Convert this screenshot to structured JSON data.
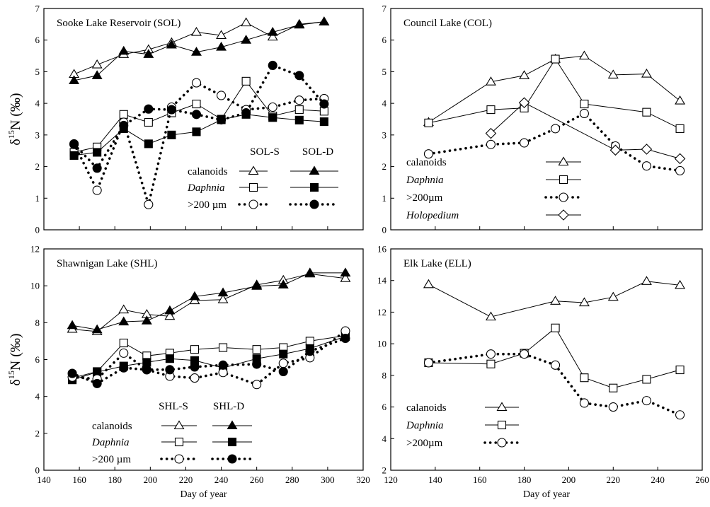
{
  "chart_data": [
    {
      "type": "line",
      "title": "Sooke Lake Reservoir (SOL)",
      "ylabel": "δ15N (‰)",
      "xlabel": "",
      "xlim": [
        140,
        320
      ],
      "ylim": [
        0,
        7
      ],
      "xticks": [],
      "yticks": [
        "0",
        "1",
        "2",
        "3",
        "4",
        "5",
        "6",
        "7"
      ],
      "legend_headers": [
        "SOL-S",
        "SOL-D"
      ],
      "legend_rows": [
        "calanoids",
        "Daphnia",
        ">200 µm"
      ],
      "series": [
        {
          "name": "SOL-S calanoids",
          "marker": "triangle-open",
          "line": "solid",
          "points": [
            [
              157,
              4.92
            ],
            [
              170,
              5.22
            ],
            [
              185,
              5.55
            ],
            [
              199,
              5.7
            ],
            [
              212,
              5.92
            ],
            [
              226,
              6.25
            ],
            [
              240,
              6.15
            ],
            [
              254,
              6.55
            ],
            [
              269,
              6.1
            ],
            [
              284,
              6.5
            ],
            [
              298,
              6.58
            ]
          ]
        },
        {
          "name": "SOL-D calanoids",
          "marker": "triangle-filled",
          "line": "solid",
          "points": [
            [
              157,
              4.72
            ],
            [
              170,
              4.88
            ],
            [
              185,
              5.65
            ],
            [
              199,
              5.55
            ],
            [
              212,
              5.85
            ],
            [
              226,
              5.62
            ],
            [
              240,
              5.78
            ],
            [
              254,
              6.0
            ],
            [
              269,
              6.25
            ],
            [
              284,
              6.48
            ],
            [
              298,
              6.58
            ]
          ]
        },
        {
          "name": "SOL-S Daphnia",
          "marker": "square-open",
          "line": "solid",
          "points": [
            [
              157,
              2.45
            ],
            [
              170,
              2.62
            ],
            [
              185,
              3.65
            ],
            [
              199,
              3.4
            ],
            [
              212,
              3.7
            ],
            [
              226,
              3.98
            ],
            [
              240,
              3.5
            ],
            [
              254,
              4.7
            ],
            [
              269,
              3.6
            ],
            [
              284,
              3.8
            ],
            [
              298,
              3.75
            ]
          ]
        },
        {
          "name": "SOL-D Daphnia",
          "marker": "square-filled",
          "line": "solid",
          "points": [
            [
              157,
              2.35
            ],
            [
              170,
              2.45
            ],
            [
              185,
              3.2
            ],
            [
              199,
              2.72
            ],
            [
              212,
              3.0
            ],
            [
              226,
              3.1
            ],
            [
              240,
              3.48
            ],
            [
              254,
              3.65
            ],
            [
              269,
              3.55
            ],
            [
              284,
              3.47
            ],
            [
              298,
              3.42
            ]
          ]
        },
        {
          "name": "SOL-S >200 µm",
          "marker": "circle-open",
          "line": "dotted",
          "points": [
            [
              157,
              2.72
            ],
            [
              170,
              1.25
            ],
            [
              185,
              3.4
            ],
            [
              199,
              0.8
            ],
            [
              212,
              3.88
            ],
            [
              226,
              4.65
            ],
            [
              240,
              4.25
            ],
            [
              254,
              3.8
            ],
            [
              269,
              3.88
            ],
            [
              284,
              4.1
            ],
            [
              298,
              4.15
            ]
          ]
        },
        {
          "name": "SOL-D >200 µm",
          "marker": "circle-filled",
          "line": "dotted",
          "points": [
            [
              157,
              2.7
            ],
            [
              170,
              1.95
            ],
            [
              185,
              3.3
            ],
            [
              199,
              3.82
            ],
            [
              212,
              3.8
            ],
            [
              226,
              3.65
            ],
            [
              240,
              3.48
            ],
            [
              254,
              3.7
            ],
            [
              269,
              5.2
            ],
            [
              284,
              4.88
            ],
            [
              298,
              3.98
            ]
          ]
        }
      ]
    },
    {
      "type": "line",
      "title": "Council Lake (COL)",
      "xlabel": "",
      "xlim": [
        120,
        260
      ],
      "ylim": [
        0,
        7
      ],
      "xticks": [],
      "yticks": [
        "0",
        "1",
        "2",
        "3",
        "4",
        "5",
        "6",
        "7"
      ],
      "legend_rows": [
        "calanoids",
        "Daphnia",
        ">200µm",
        "Holopedium"
      ],
      "series": [
        {
          "name": "calanoids",
          "marker": "triangle-open",
          "line": "solid",
          "points": [
            [
              137,
              3.4
            ],
            [
              165,
              4.68
            ],
            [
              180,
              4.88
            ],
            [
              194,
              5.4
            ],
            [
              207,
              5.5
            ],
            [
              220,
              4.9
            ],
            [
              235,
              4.93
            ],
            [
              250,
              4.08
            ]
          ]
        },
        {
          "name": "Daphnia",
          "marker": "square-open",
          "line": "solid",
          "points": [
            [
              137,
              3.38
            ],
            [
              165,
              3.8
            ],
            [
              180,
              3.85
            ],
            [
              194,
              5.4
            ],
            [
              207,
              3.98
            ],
            [
              235,
              3.72
            ],
            [
              250,
              3.2
            ]
          ]
        },
        {
          "name": ">200µm",
          "marker": "circle-open",
          "line": "dotted",
          "points": [
            [
              137,
              2.4
            ],
            [
              165,
              2.7
            ],
            [
              180,
              2.75
            ],
            [
              194,
              3.2
            ],
            [
              207,
              3.68
            ],
            [
              221,
              2.65
            ],
            [
              235,
              2.02
            ],
            [
              250,
              1.87
            ]
          ]
        },
        {
          "name": "Holopedium",
          "marker": "diamond-open",
          "line": "solid",
          "points": [
            [
              165,
              3.05
            ],
            [
              180,
              4.02
            ],
            [
              221,
              2.52
            ],
            [
              235,
              2.55
            ],
            [
              250,
              2.25
            ]
          ]
        }
      ]
    },
    {
      "type": "line",
      "title": "Shawnigan Lake (SHL)",
      "ylabel": "δ15N (‰)",
      "xlabel": "Day of year",
      "xlim": [
        140,
        320
      ],
      "ylim": [
        0,
        12
      ],
      "xticks": [
        "140",
        "160",
        "180",
        "200",
        "220",
        "240",
        "260",
        "280",
        "300",
        "320"
      ],
      "yticks": [
        "0",
        "2",
        "4",
        "6",
        "8",
        "10",
        "12"
      ],
      "legend_headers": [
        "SHL-S",
        "SHL-D"
      ],
      "legend_rows": [
        "calanoids",
        "Daphnia",
        ">200 µm"
      ],
      "series": [
        {
          "name": "SHL-S calanoids",
          "marker": "triangle-open",
          "line": "solid",
          "points": [
            [
              156,
              7.65
            ],
            [
              170,
              7.52
            ],
            [
              185,
              8.7
            ],
            [
              198,
              8.45
            ],
            [
              211,
              8.35
            ],
            [
              225,
              9.2
            ],
            [
              241,
              9.25
            ],
            [
              260,
              10.05
            ],
            [
              275,
              10.3
            ],
            [
              290,
              10.65
            ],
            [
              310,
              10.4
            ]
          ]
        },
        {
          "name": "SHL-D calanoids",
          "marker": "triangle-filled",
          "line": "solid",
          "points": [
            [
              156,
              7.85
            ],
            [
              170,
              7.62
            ],
            [
              185,
              8.05
            ],
            [
              198,
              8.1
            ],
            [
              211,
              8.65
            ],
            [
              225,
              9.42
            ],
            [
              241,
              9.62
            ],
            [
              260,
              9.98
            ],
            [
              275,
              10.05
            ],
            [
              290,
              10.7
            ],
            [
              310,
              10.7
            ]
          ]
        },
        {
          "name": "SHL-S Daphnia",
          "marker": "square-open",
          "line": "solid",
          "points": [
            [
              156,
              5.0
            ],
            [
              170,
              5.35
            ],
            [
              185,
              6.9
            ],
            [
              198,
              6.2
            ],
            [
              211,
              6.35
            ],
            [
              225,
              6.55
            ],
            [
              241,
              6.65
            ],
            [
              260,
              6.55
            ],
            [
              275,
              6.65
            ],
            [
              290,
              7.0
            ],
            [
              310,
              7.3
            ]
          ]
        },
        {
          "name": "SHL-D Daphnia",
          "marker": "square-filled",
          "line": "solid",
          "points": [
            [
              156,
              4.9
            ],
            [
              170,
              5.32
            ],
            [
              185,
              5.65
            ],
            [
              198,
              5.85
            ],
            [
              211,
              6.05
            ],
            [
              225,
              5.95
            ],
            [
              241,
              5.55
            ],
            [
              260,
              6.05
            ],
            [
              275,
              6.3
            ],
            [
              290,
              6.6
            ],
            [
              310,
              7.25
            ]
          ]
        },
        {
          "name": "SHL-S >200 µm",
          "marker": "circle-open",
          "line": "dotted",
          "points": [
            [
              156,
              5.05
            ],
            [
              170,
              4.95
            ],
            [
              185,
              6.35
            ],
            [
              198,
              5.45
            ],
            [
              211,
              5.1
            ],
            [
              225,
              5.0
            ],
            [
              241,
              5.3
            ],
            [
              260,
              4.65
            ],
            [
              275,
              5.8
            ],
            [
              290,
              6.1
            ],
            [
              310,
              7.55
            ]
          ]
        },
        {
          "name": "SHL-D >200 µm",
          "marker": "circle-filled",
          "line": "dotted",
          "points": [
            [
              156,
              5.25
            ],
            [
              170,
              4.7
            ],
            [
              185,
              5.55
            ],
            [
              198,
              5.45
            ],
            [
              211,
              5.45
            ],
            [
              225,
              5.6
            ],
            [
              241,
              5.7
            ],
            [
              260,
              5.75
            ],
            [
              275,
              5.35
            ],
            [
              290,
              6.45
            ],
            [
              310,
              7.15
            ]
          ]
        }
      ]
    },
    {
      "type": "line",
      "title": "Elk Lake (ELL)",
      "xlabel": "Day of year",
      "xlim": [
        120,
        260
      ],
      "ylim": [
        2,
        16
      ],
      "xticks": [
        "120",
        "140",
        "160",
        "180",
        "200",
        "220",
        "240",
        "260"
      ],
      "yticks": [
        "2",
        "4",
        "6",
        "8",
        "10",
        "12",
        "14",
        "16"
      ],
      "legend_rows": [
        "calanoids",
        "Daphnia",
        ">200µm"
      ],
      "series": [
        {
          "name": "calanoids",
          "marker": "triangle-open",
          "line": "solid",
          "points": [
            [
              137,
              13.75
            ],
            [
              165,
              11.7
            ],
            [
              194,
              12.7
            ],
            [
              207,
              12.6
            ],
            [
              220,
              12.95
            ],
            [
              235,
              13.95
            ],
            [
              250,
              13.7
            ]
          ]
        },
        {
          "name": "Daphnia",
          "marker": "square-open",
          "line": "solid",
          "points": [
            [
              137,
              8.8
            ],
            [
              165,
              8.72
            ],
            [
              180,
              9.4
            ],
            [
              194,
              11.0
            ],
            [
              207,
              7.85
            ],
            [
              220,
              7.2
            ],
            [
              235,
              7.75
            ],
            [
              250,
              8.35
            ]
          ]
        },
        {
          "name": ">200µm",
          "marker": "circle-open",
          "line": "dotted",
          "points": [
            [
              137,
              8.8
            ],
            [
              165,
              9.35
            ],
            [
              180,
              9.35
            ],
            [
              194,
              8.65
            ],
            [
              207,
              6.25
            ],
            [
              220,
              6.0
            ],
            [
              235,
              6.4
            ],
            [
              250,
              5.5
            ]
          ]
        }
      ]
    }
  ]
}
